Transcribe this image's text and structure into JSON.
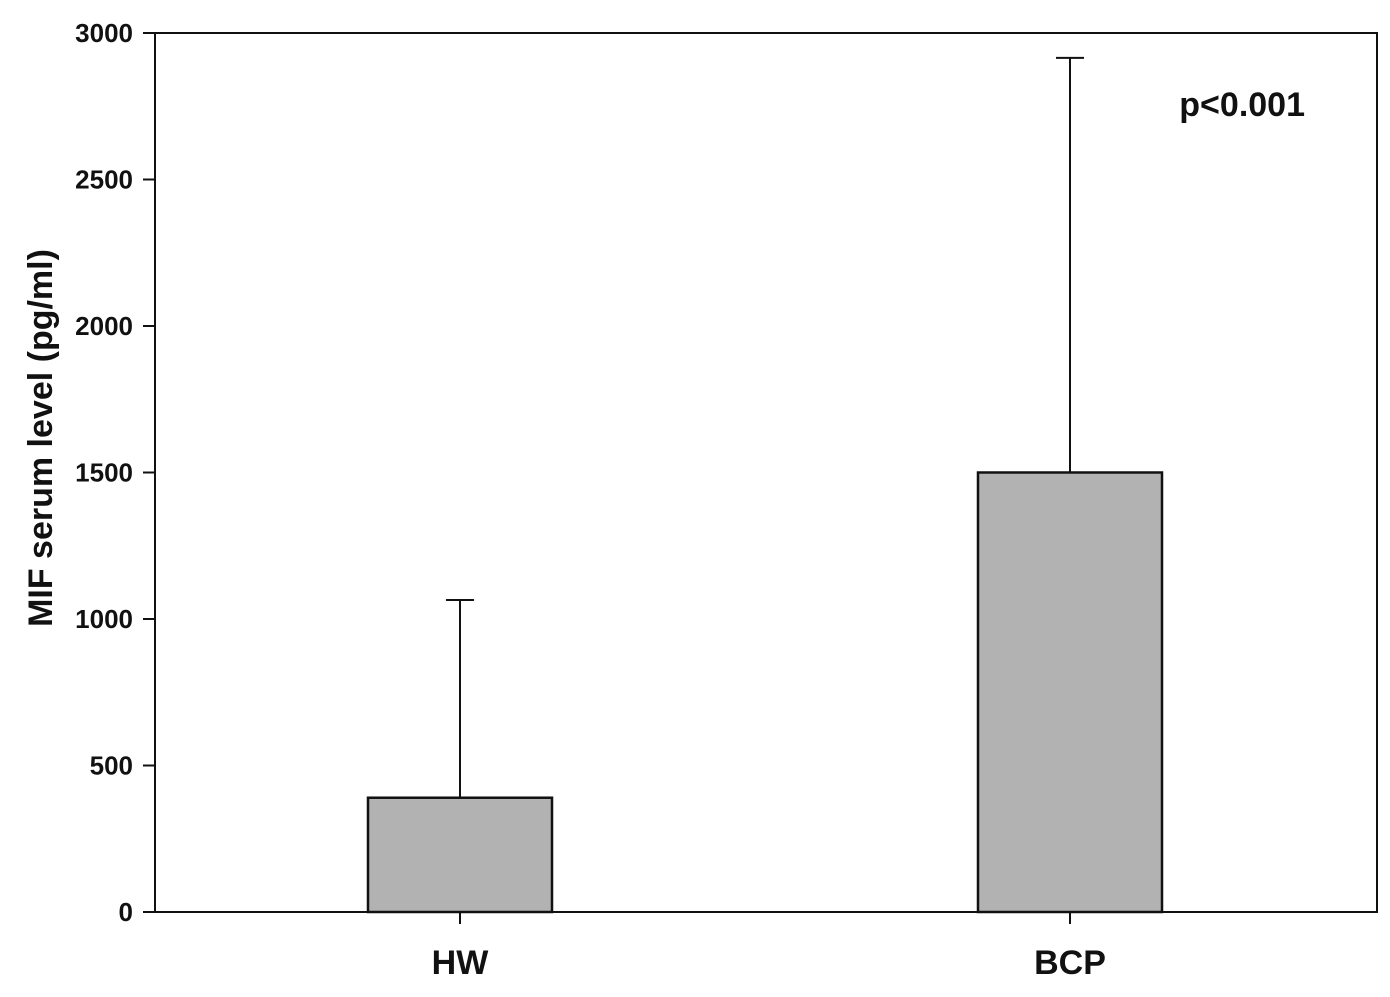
{
  "chart_data": {
    "type": "bar",
    "categories": [
      "HW",
      "BCP"
    ],
    "values": [
      390,
      1500
    ],
    "error_upper": [
      1065,
      2915
    ],
    "ylabel": "MIF serum level (pg/ml)",
    "xlabel": "",
    "ylim": [
      0,
      3000
    ],
    "yticks": [
      0,
      500,
      1000,
      1500,
      2000,
      2500,
      3000
    ],
    "annotation": "p<0.001",
    "annotation_placement": "top-right",
    "grid": false,
    "bar_color": "#b2b2b2",
    "edge_color": "#111111"
  }
}
